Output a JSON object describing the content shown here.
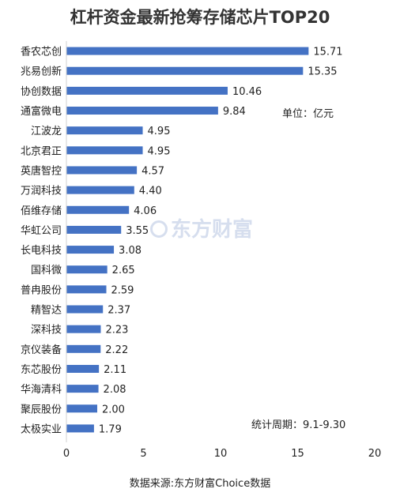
{
  "chart_data": {
    "type": "bar",
    "orientation": "horizontal",
    "title": "杠杆资金最新抢筹存储芯片TOP20",
    "categories": [
      "香农芯创",
      "兆易创新",
      "协创数据",
      "通富微电",
      "江波龙",
      "北京君正",
      "英唐智控",
      "万润科技",
      "佰维存储",
      "华虹公司",
      "长电科技",
      "国科微",
      "普冉股份",
      "精智达",
      "深科技",
      "京仪装备",
      "东芯股份",
      "华海清科",
      "聚辰股份",
      "太极实业"
    ],
    "values": [
      15.71,
      15.35,
      10.46,
      9.84,
      4.95,
      4.95,
      4.57,
      4.4,
      4.06,
      3.55,
      3.08,
      2.65,
      2.59,
      2.37,
      2.23,
      2.22,
      2.11,
      2.08,
      2.0,
      1.79
    ],
    "value_labels": [
      "15.71",
      "15.35",
      "10.46",
      "9.84",
      "4.95",
      "4.95",
      "4.57",
      "4.40",
      "4.06",
      "3.55",
      "3.08",
      "2.65",
      "2.59",
      "2.37",
      "2.23",
      "2.22",
      "2.11",
      "2.08",
      "2.00",
      "1.79"
    ],
    "xlim": [
      0,
      20
    ],
    "xticks": [
      "0",
      "5",
      "10",
      "15",
      "20"
    ],
    "grid": false,
    "bar_color": "#4472c4"
  },
  "notes": {
    "unit": "单位：亿元",
    "period": "统计周期：9.1-9.30",
    "source": "数据来源:东方财富Choice数据",
    "watermark": "东方财富"
  }
}
